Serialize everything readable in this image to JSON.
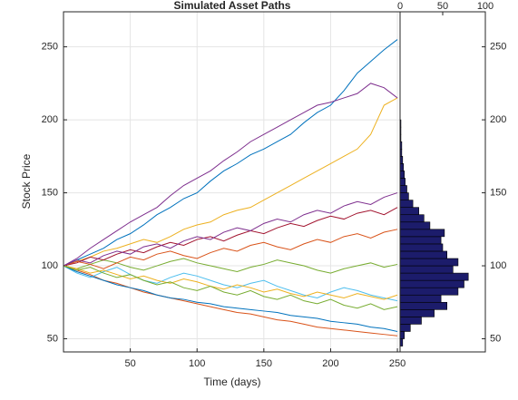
{
  "chart_data": [
    {
      "type": "line",
      "title": "Simulated Asset Paths",
      "x_label": "Time (days)",
      "y_label": "Stock Price",
      "x": [
        0,
        10,
        20,
        30,
        40,
        50,
        60,
        70,
        80,
        90,
        100,
        110,
        120,
        130,
        140,
        150,
        160,
        170,
        180,
        190,
        200,
        210,
        220,
        230,
        240,
        250
      ],
      "xlim": [
        0,
        252
      ],
      "xticks": [
        50,
        100,
        150,
        200,
        250
      ],
      "ylim": [
        41,
        274
      ],
      "yticks": [
        50,
        100,
        150,
        200,
        250
      ],
      "grid": true,
      "series": [
        {
          "color": "#0072BD",
          "values": [
            100,
            104,
            108,
            112,
            118,
            122,
            128,
            135,
            140,
            146,
            150,
            158,
            165,
            170,
            176,
            180,
            185,
            190,
            198,
            205,
            210,
            220,
            232,
            240,
            248,
            255
          ]
        },
        {
          "color": "#D95319",
          "values": [
            100,
            97,
            94,
            90,
            88,
            85,
            82,
            80,
            78,
            76,
            74,
            72,
            70,
            68,
            67,
            65,
            63,
            62,
            60,
            58,
            57,
            56,
            55,
            54,
            53,
            52
          ]
        },
        {
          "color": "#EDB120",
          "values": [
            100,
            103,
            106,
            110,
            112,
            115,
            118,
            116,
            120,
            125,
            128,
            130,
            135,
            138,
            140,
            145,
            150,
            155,
            160,
            165,
            170,
            175,
            180,
            190,
            210,
            215
          ]
        },
        {
          "color": "#7E2F8E",
          "values": [
            100,
            105,
            112,
            118,
            124,
            130,
            135,
            140,
            148,
            155,
            160,
            165,
            172,
            178,
            185,
            190,
            195,
            200,
            205,
            210,
            212,
            215,
            218,
            225,
            222,
            215
          ]
        },
        {
          "color": "#77AC30",
          "values": [
            100,
            98,
            101,
            104,
            102,
            99,
            97,
            100,
            103,
            105,
            102,
            100,
            98,
            96,
            99,
            101,
            104,
            102,
            100,
            97,
            95,
            98,
            100,
            102,
            99,
            101
          ]
        },
        {
          "color": "#4DBEEE",
          "values": [
            100,
            95,
            92,
            96,
            99,
            94,
            90,
            88,
            92,
            95,
            93,
            90,
            87,
            85,
            88,
            90,
            86,
            83,
            80,
            78,
            82,
            85,
            83,
            80,
            78,
            76
          ]
        },
        {
          "color": "#A2142F",
          "values": [
            100,
            102,
            106,
            104,
            108,
            111,
            109,
            113,
            116,
            114,
            118,
            120,
            117,
            121,
            124,
            122,
            126,
            129,
            127,
            131,
            134,
            132,
            136,
            138,
            135,
            140
          ]
        },
        {
          "color": "#0072BD",
          "values": [
            100,
            96,
            93,
            90,
            87,
            85,
            83,
            80,
            78,
            77,
            75,
            74,
            72,
            71,
            70,
            69,
            68,
            66,
            65,
            64,
            62,
            61,
            60,
            58,
            57,
            55
          ]
        },
        {
          "color": "#D95319",
          "values": [
            100,
            103,
            101,
            98,
            102,
            106,
            104,
            108,
            110,
            107,
            105,
            109,
            112,
            110,
            114,
            116,
            113,
            111,
            115,
            118,
            116,
            120,
            122,
            119,
            123,
            125
          ]
        },
        {
          "color": "#EDB120",
          "values": [
            100,
            98,
            95,
            97,
            94,
            91,
            93,
            90,
            88,
            91,
            89,
            86,
            84,
            87,
            85,
            82,
            84,
            81,
            79,
            82,
            80,
            78,
            81,
            79,
            77,
            80
          ]
        },
        {
          "color": "#7E2F8E",
          "values": [
            100,
            104,
            102,
            107,
            110,
            108,
            113,
            115,
            112,
            117,
            120,
            118,
            123,
            126,
            124,
            129,
            132,
            130,
            135,
            138,
            136,
            141,
            144,
            142,
            147,
            150
          ]
        },
        {
          "color": "#77AC30",
          "values": [
            100,
            97,
            99,
            95,
            92,
            94,
            90,
            87,
            89,
            85,
            83,
            86,
            82,
            80,
            83,
            79,
            77,
            80,
            76,
            74,
            77,
            73,
            71,
            74,
            70,
            72
          ]
        }
      ]
    },
    {
      "type": "histogram",
      "orientation": "horizontal",
      "color": "#1c1c6b",
      "bins": [
        45,
        50,
        55,
        60,
        65,
        70,
        75,
        80,
        85,
        90,
        95,
        100,
        105,
        110,
        115,
        120,
        125,
        130,
        135,
        140,
        145,
        150,
        155,
        160,
        165,
        170,
        175,
        180,
        185,
        190,
        195,
        200
      ],
      "values": [
        3,
        5,
        12,
        25,
        40,
        55,
        48,
        68,
        75,
        80,
        62,
        68,
        55,
        50,
        48,
        52,
        35,
        28,
        22,
        15,
        10,
        8,
        6,
        5,
        4,
        3,
        2,
        2,
        1,
        1,
        1
      ],
      "xlim": [
        0,
        100
      ],
      "xticks": [
        0,
        50,
        100
      ],
      "ylim": [
        41,
        274
      ],
      "yticks": [
        50,
        100,
        150,
        200,
        250
      ]
    }
  ]
}
